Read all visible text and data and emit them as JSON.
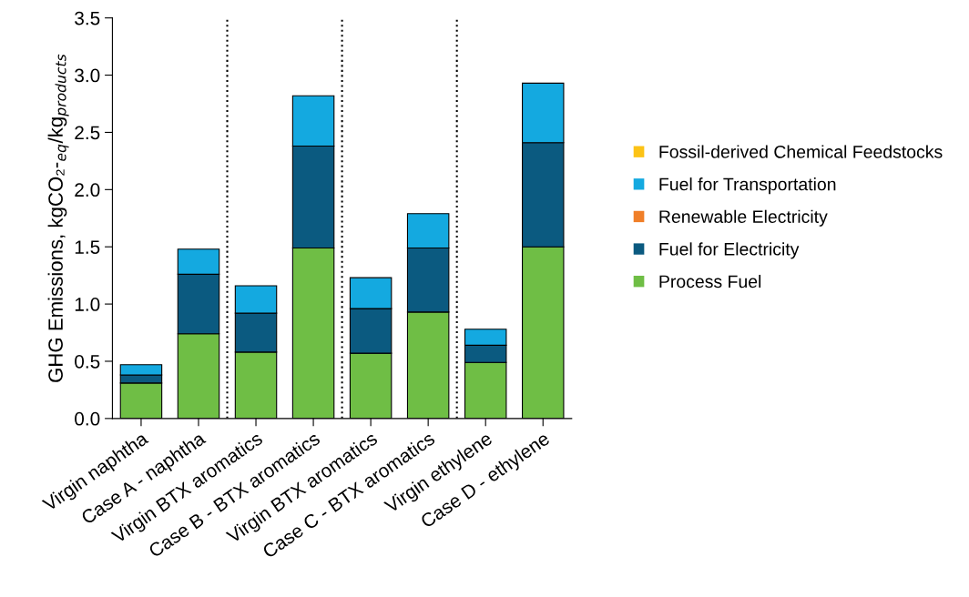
{
  "chart_data": {
    "type": "bar",
    "stacked": true,
    "ylabel": "GHG Emissions, kgCO₂-$_{eq}$/kg$_{products}$",
    "categories": [
      "Virgin naphtha",
      "Case A - naphtha",
      "Virgin BTX aromatics",
      "Case B - BTX aromatics",
      "Virgin BTX aromatics",
      "Case C - BTX aromatics",
      "Virgin ethylene",
      "Case D - ethylene"
    ],
    "series": [
      {
        "name": "Process Fuel",
        "color": "#6fbe45",
        "values": [
          0.31,
          0.74,
          0.58,
          1.49,
          0.57,
          0.93,
          0.49,
          1.5
        ]
      },
      {
        "name": "Fuel for Electricity",
        "color": "#0b5a80",
        "values": [
          0.07,
          0.52,
          0.34,
          0.89,
          0.39,
          0.56,
          0.15,
          0.91
        ]
      },
      {
        "name": "Renewable Electricity",
        "color": "#f07f28",
        "values": [
          null,
          null,
          null,
          null,
          null,
          null,
          null,
          null
        ]
      },
      {
        "name": "Fuel for Transportation",
        "color": "#14a9e0",
        "values": [
          0.09,
          0.22,
          0.24,
          0.44,
          0.27,
          0.3,
          0.14,
          0.52
        ]
      },
      {
        "name": "Fossil-derived Chemical Feedstocks",
        "color": "#fcc316",
        "values": [
          null,
          null,
          null,
          null,
          null,
          null,
          null,
          null
        ]
      }
    ],
    "ylim": [
      0,
      3.5
    ],
    "yticks": [
      {
        "value": 0,
        "label": "0.0"
      },
      {
        "value": 0.5,
        "label": "0.5"
      },
      {
        "value": 1,
        "label": "1.0"
      },
      {
        "value": 1.5,
        "label": "1.5"
      },
      {
        "value": 2,
        "label": "2.0"
      },
      {
        "value": 2.5,
        "label": "2.5"
      },
      {
        "value": 3,
        "label": "3.0"
      },
      {
        "value": 3.5,
        "label": "3.5"
      }
    ],
    "legend": "right",
    "grid": false
  }
}
